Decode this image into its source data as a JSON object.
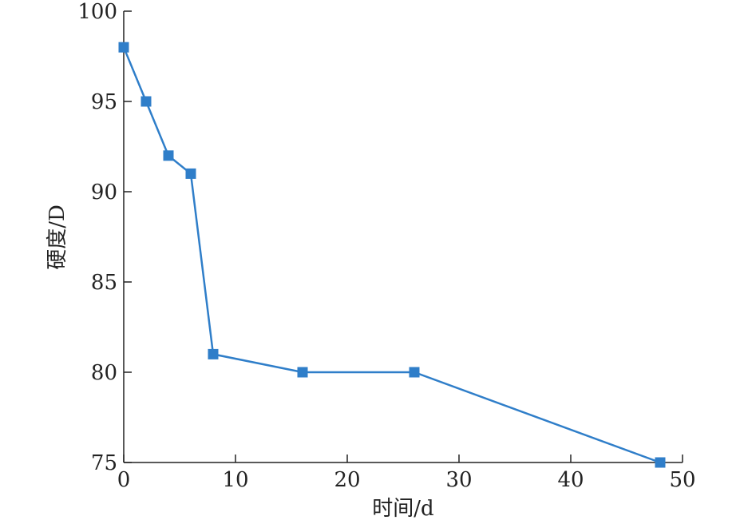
{
  "chart_data": {
    "type": "line",
    "title": "",
    "xlabel": "时间/d",
    "ylabel": "硬度/D",
    "xlim": [
      0,
      50
    ],
    "ylim": [
      75,
      100
    ],
    "x_ticks": [
      0,
      10,
      20,
      30,
      40,
      50
    ],
    "y_ticks": [
      75,
      80,
      85,
      90,
      95,
      100
    ],
    "grid": false,
    "legend": "none",
    "series": [
      {
        "color": "#2f7ec9",
        "marker": "square",
        "points": [
          {
            "x": 0,
            "y": 98
          },
          {
            "x": 2,
            "y": 95
          },
          {
            "x": 4,
            "y": 92
          },
          {
            "x": 6,
            "y": 91
          },
          {
            "x": 8,
            "y": 81
          },
          {
            "x": 16,
            "y": 80
          },
          {
            "x": 26,
            "y": 80
          },
          {
            "x": 48,
            "y": 75
          }
        ]
      }
    ]
  }
}
